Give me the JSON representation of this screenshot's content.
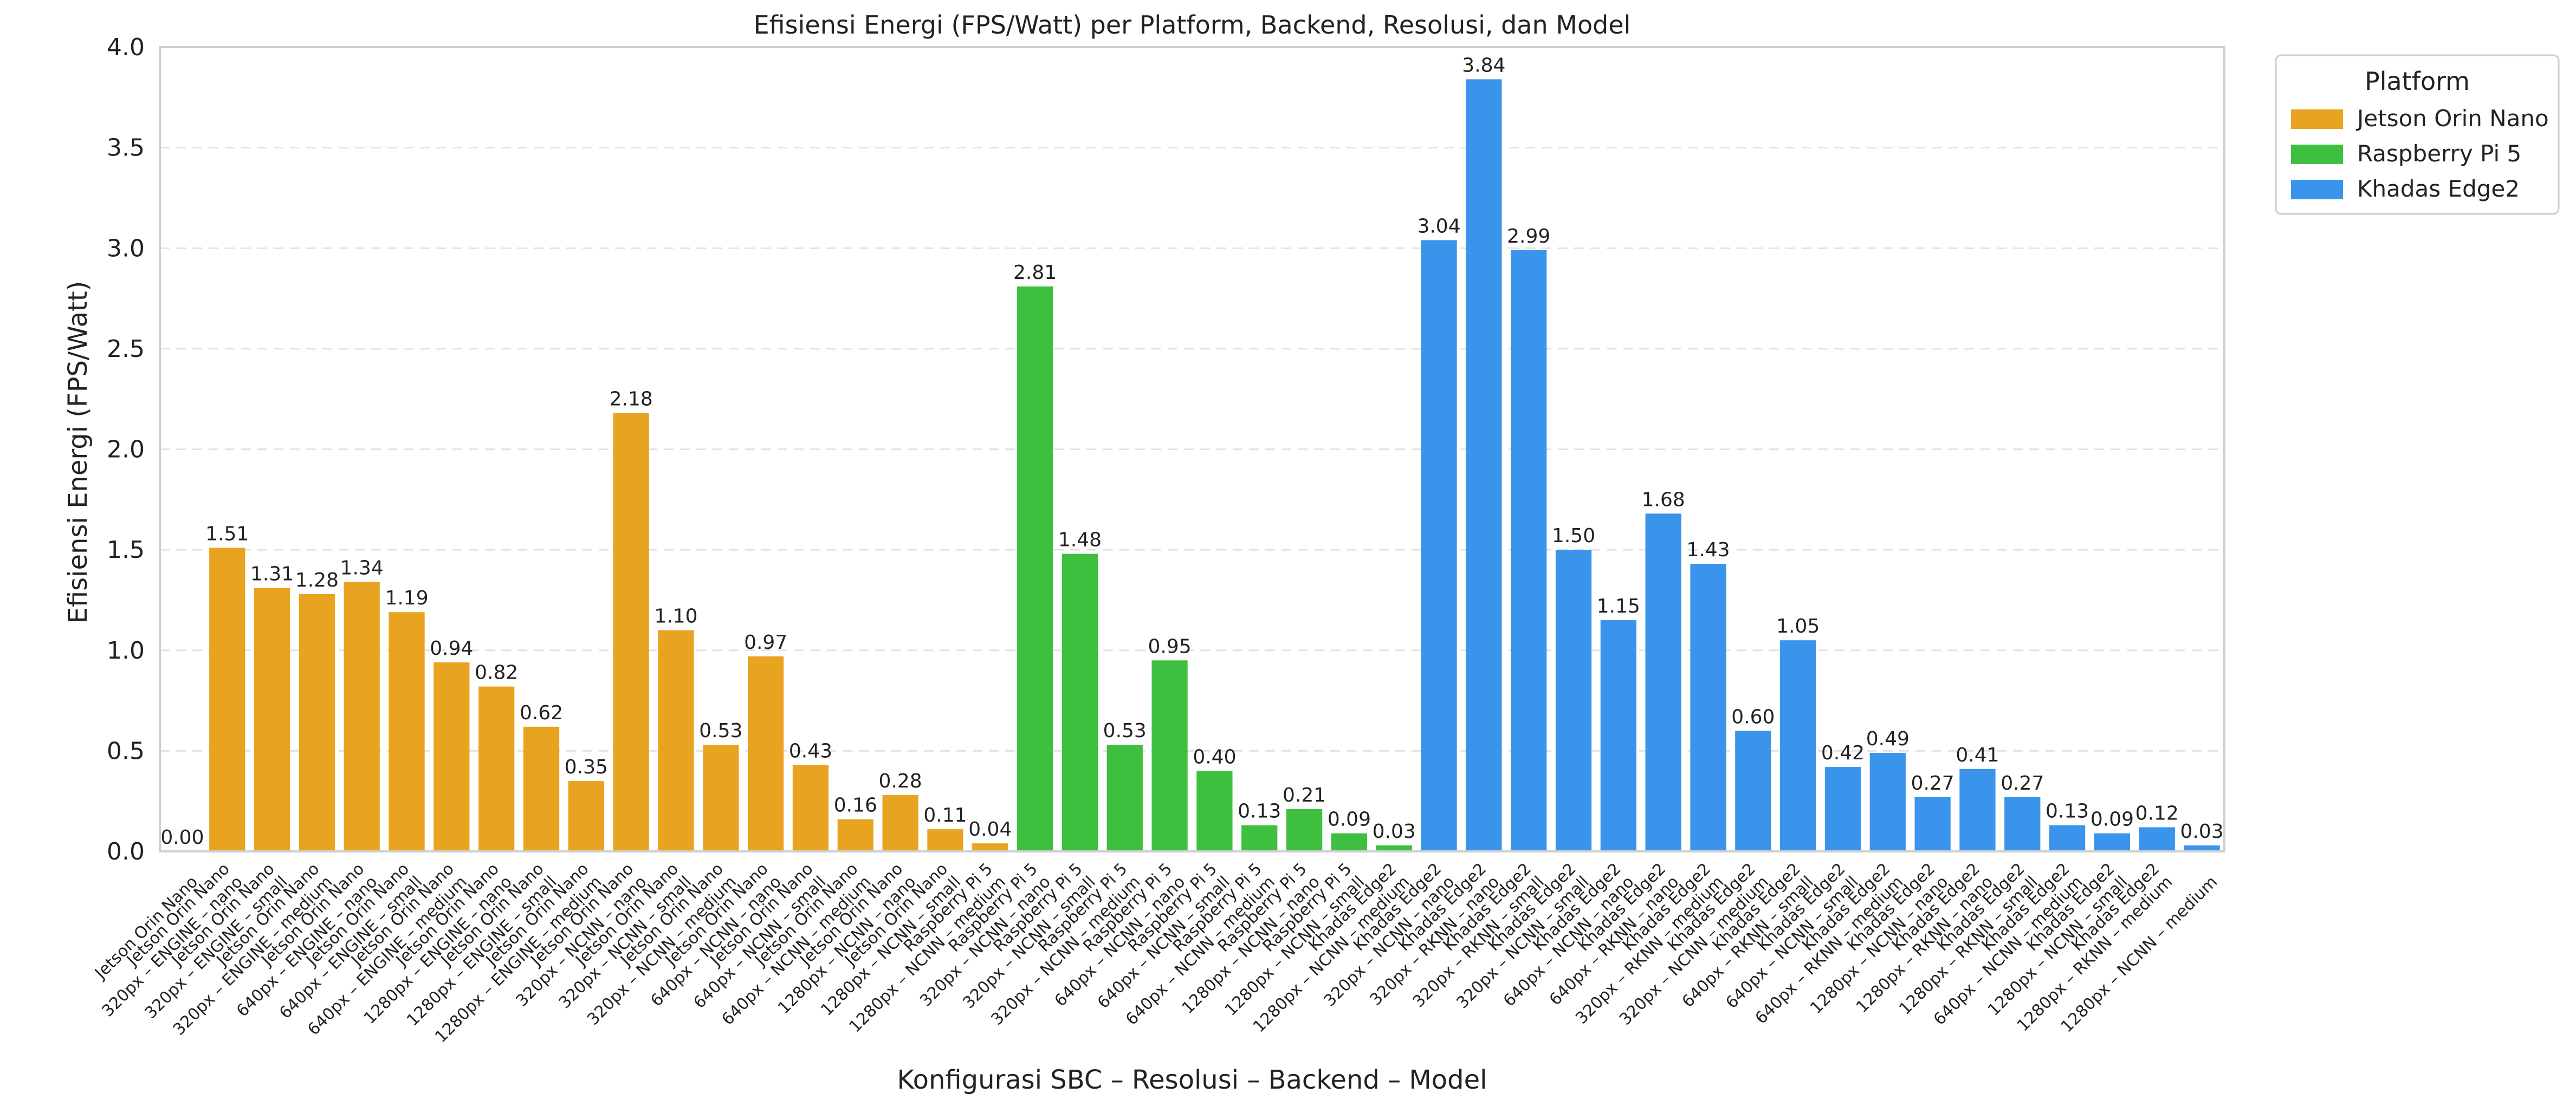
{
  "chart_data": {
    "type": "bar",
    "title": "Efisiensi Energi (FPS/Watt) per Platform, Backend, Resolusi, dan Model",
    "xlabel": "Konfigurasi SBC – Resolusi – Backend – Model",
    "ylabel": "Efisiensi Energi (FPS/Watt)",
    "ylim": [
      0,
      4.0
    ],
    "yticks": [
      0.0,
      0.5,
      1.0,
      1.5,
      2.0,
      2.5,
      3.0,
      3.5,
      4.0
    ],
    "grid": true,
    "legend": {
      "title": "Platform",
      "position": "top-right-outside",
      "entries": [
        {
          "name": "Jetson Orin Nano",
          "color": "#E8A420"
        },
        {
          "name": "Raspberry Pi 5",
          "color": "#3FBF3F"
        },
        {
          "name": "Khadas Edge2",
          "color": "#3A94EC"
        }
      ]
    },
    "categories": [
      "Jetson Orin Nano",
      "320px – ENGINE – nano",
      "320px – ENGINE – small",
      "320px – ENGINE – medium",
      "640px – ENGINE – nano",
      "640px – ENGINE – small",
      "640px – ENGINE – medium",
      "1280px – ENGINE – nano",
      "1280px – ENGINE – small",
      "1280px – ENGINE – medium",
      "320px – NCNN – nano",
      "320px – NCNN – small",
      "320px – NCNN – medium",
      "640px – NCNN – nano",
      "640px – NCNN – small",
      "640px – NCNN – medium",
      "1280px – NCNN – nano",
      "1280px – NCNN – small",
      "1280px – NCNN – medium",
      "320px – NCNN – nano",
      "320px – NCNN – small",
      "320px – NCNN – medium",
      "640px – NCNN – nano",
      "640px – NCNN – small",
      "640px – NCNN – medium",
      "1280px – NCNN – nano",
      "1280px – NCNN – small",
      "1280px – NCNN – medium",
      "320px – NCNN – nano",
      "320px – RKNN – nano",
      "320px – RKNN – small",
      "320px – NCNN – small",
      "640px – NCNN – nano",
      "640px – RKNN – nano",
      "320px – RKNN – medium",
      "320px – NCNN – medium",
      "640px – RKNN – small",
      "640px – NCNN – small",
      "640px – RKNN – medium",
      "1280px – NCNN – nano",
      "1280px – RKNN – nano",
      "1280px – RKNN – small",
      "640px – NCNN – medium",
      "1280px – NCNN – small",
      "1280px – RKNN – medium",
      "1280px – NCNN – medium"
    ],
    "tick_platform": [
      "",
      "Jetson Orin Nano",
      "Jetson Orin Nano",
      "Jetson Orin Nano",
      "Jetson Orin Nano",
      "Jetson Orin Nano",
      "Jetson Orin Nano",
      "Jetson Orin Nano",
      "Jetson Orin Nano",
      "Jetson Orin Nano",
      "Jetson Orin Nano",
      "Jetson Orin Nano",
      "Jetson Orin Nano",
      "Jetson Orin Nano",
      "Jetson Orin Nano",
      "Jetson Orin Nano",
      "Jetson Orin Nano",
      "Jetson Orin Nano",
      "Raspberry Pi 5",
      "Raspberry Pi 5",
      "Raspberry Pi 5",
      "Raspberry Pi 5",
      "Raspberry Pi 5",
      "Raspberry Pi 5",
      "Raspberry Pi 5",
      "Raspberry Pi 5",
      "Raspberry Pi 5",
      "Khadas Edge2",
      "Khadas Edge2",
      "Khadas Edge2",
      "Khadas Edge2",
      "Khadas Edge2",
      "Khadas Edge2",
      "Khadas Edge2",
      "Khadas Edge2",
      "Khadas Edge2",
      "Khadas Edge2",
      "Khadas Edge2",
      "Khadas Edge2",
      "Khadas Edge2",
      "Khadas Edge2",
      "Khadas Edge2",
      "Khadas Edge2",
      "Khadas Edge2",
      "Khadas Edge2",
      ""
    ],
    "platform": [
      "Jetson Orin Nano",
      "Jetson Orin Nano",
      "Jetson Orin Nano",
      "Jetson Orin Nano",
      "Jetson Orin Nano",
      "Jetson Orin Nano",
      "Jetson Orin Nano",
      "Jetson Orin Nano",
      "Jetson Orin Nano",
      "Jetson Orin Nano",
      "Jetson Orin Nano",
      "Jetson Orin Nano",
      "Jetson Orin Nano",
      "Jetson Orin Nano",
      "Jetson Orin Nano",
      "Jetson Orin Nano",
      "Jetson Orin Nano",
      "Jetson Orin Nano",
      "Jetson Orin Nano",
      "Raspberry Pi 5",
      "Raspberry Pi 5",
      "Raspberry Pi 5",
      "Raspberry Pi 5",
      "Raspberry Pi 5",
      "Raspberry Pi 5",
      "Raspberry Pi 5",
      "Raspberry Pi 5",
      "Raspberry Pi 5",
      "Khadas Edge2",
      "Khadas Edge2",
      "Khadas Edge2",
      "Khadas Edge2",
      "Khadas Edge2",
      "Khadas Edge2",
      "Khadas Edge2",
      "Khadas Edge2",
      "Khadas Edge2",
      "Khadas Edge2",
      "Khadas Edge2",
      "Khadas Edge2",
      "Khadas Edge2",
      "Khadas Edge2",
      "Khadas Edge2",
      "Khadas Edge2",
      "Khadas Edge2",
      "Khadas Edge2"
    ],
    "values": [
      0.0,
      1.51,
      1.31,
      1.28,
      1.34,
      1.19,
      0.94,
      0.82,
      0.62,
      0.35,
      2.18,
      1.1,
      0.53,
      0.97,
      0.43,
      0.16,
      0.28,
      0.11,
      0.04,
      2.81,
      1.48,
      0.53,
      0.95,
      0.4,
      0.13,
      0.21,
      0.09,
      0.03,
      3.04,
      3.84,
      2.99,
      1.5,
      1.15,
      1.68,
      1.43,
      0.6,
      1.05,
      0.42,
      0.49,
      0.27,
      0.41,
      0.27,
      0.13,
      0.09,
      0.12,
      0.03
    ],
    "data_labels": [
      "0.00",
      "1.51",
      "1.31",
      "1.28",
      "1.34",
      "1.19",
      "0.94",
      "0.82",
      "0.62",
      "0.35",
      "2.18",
      "1.10",
      "0.53",
      "0.97",
      "0.43",
      "0.16",
      "0.28",
      "0.11",
      "0.04",
      "2.81",
      "1.48",
      "0.53",
      "0.95",
      "0.40",
      "0.13",
      "0.21",
      "0.09",
      "0.03",
      "3.04",
      "3.84",
      "2.99",
      "1.50",
      "1.15",
      "1.68",
      "1.43",
      "0.60",
      "1.05",
      "0.42",
      "0.49",
      "0.27",
      "0.41",
      "0.27",
      "0.13",
      "0.09",
      "0.12",
      "0.03"
    ]
  }
}
